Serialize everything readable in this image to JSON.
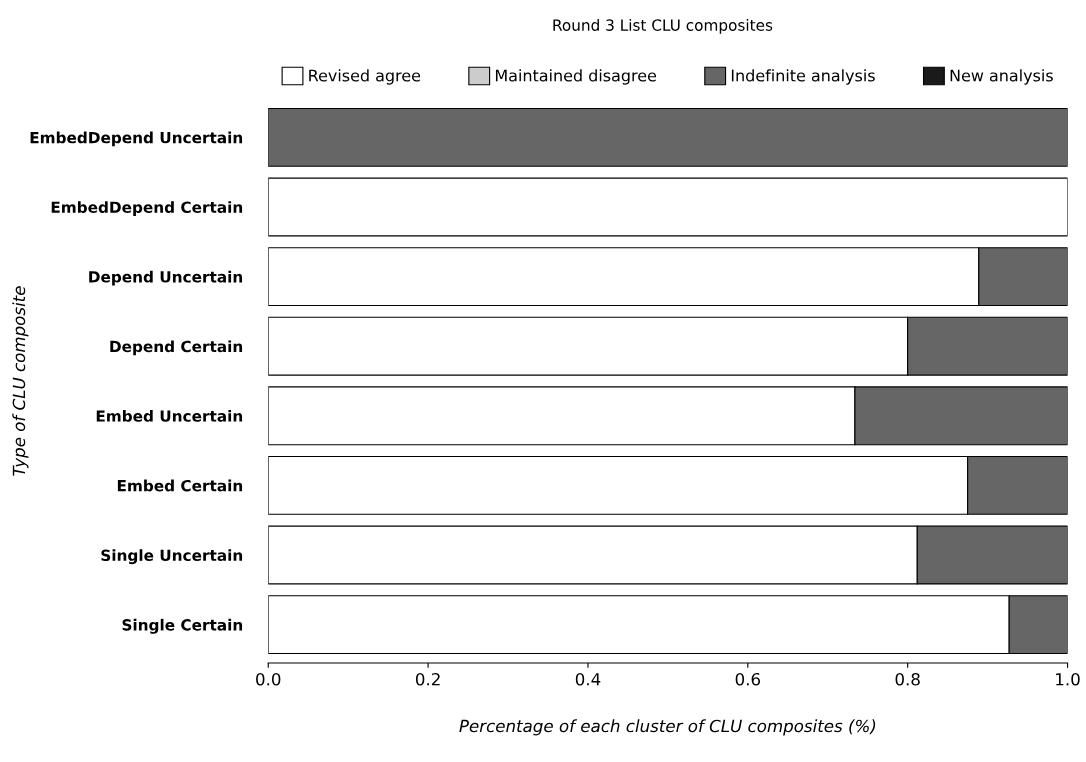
{
  "chart_data": {
    "type": "bar",
    "orientation": "horizontal",
    "stacked": true,
    "title": "Round 3 List CLU composites",
    "xlabel": "Percentage of each cluster of CLU composites (%)",
    "ylabel": "Type of CLU composite",
    "categories": [
      "EmbedDepend Uncertain",
      "EmbedDepend Certain",
      "Depend Uncertain",
      "Depend Certain",
      "Embed Uncertain",
      "Embed Certain",
      "Single Uncertain",
      "Single Certain"
    ],
    "series": [
      {
        "name": "Revised agree",
        "color": "#ffffff",
        "values": [
          0,
          1,
          0.889,
          0.8,
          0.734,
          0.875,
          0.812,
          0.927
        ]
      },
      {
        "name": "Maintained disagree",
        "color": "#cccccc",
        "values": [
          0,
          0,
          0,
          0,
          0,
          0,
          0,
          0
        ]
      },
      {
        "name": "Indefinite analysis",
        "color": "#666666",
        "values": [
          1,
          0,
          0.111,
          0.2,
          0.266,
          0.125,
          0.188,
          0.073
        ]
      },
      {
        "name": "New analysis",
        "color": "#1a1a1a",
        "values": [
          0,
          0,
          0,
          0,
          0,
          0,
          0,
          0
        ]
      }
    ],
    "xlim": [
      0,
      1
    ],
    "xticks": [
      {
        "value": 0,
        "label": "0.0"
      },
      {
        "value": 0.2,
        "label": "0.2"
      },
      {
        "value": 0.4,
        "label": "0.4"
      },
      {
        "value": 0.6,
        "label": "0.6"
      },
      {
        "value": 0.8,
        "label": "0.8"
      },
      {
        "value": 1,
        "label": "1.0"
      }
    ],
    "grid": false,
    "legend": "top"
  }
}
